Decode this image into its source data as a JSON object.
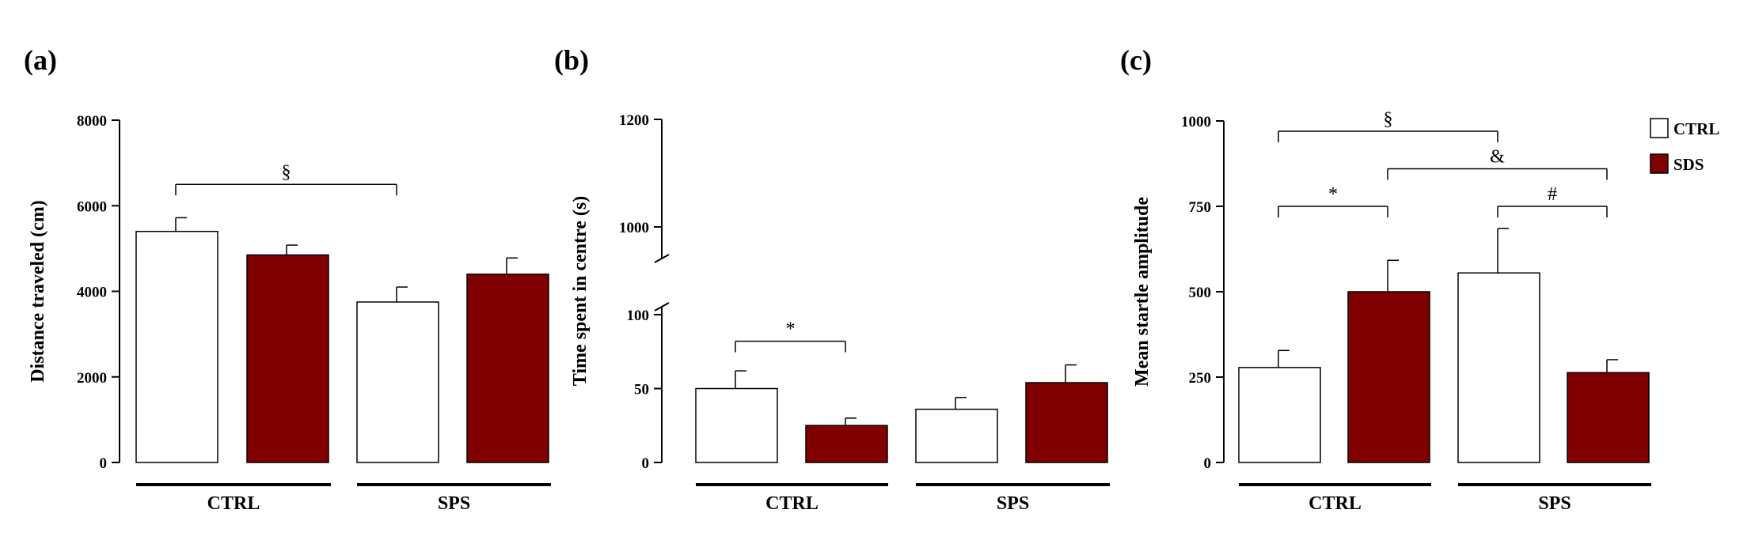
{
  "legend": [
    {
      "label": "CTRL",
      "color": "#ffffff"
    },
    {
      "label": "SDS",
      "color": "#800000"
    }
  ],
  "chart_data": [
    {
      "type": "bar",
      "panel": "(a)",
      "ylabel": "Distance traveled (cm)",
      "groups": [
        "CTRL",
        "SPS"
      ],
      "ylim": [
        0,
        8000
      ],
      "yticks": [
        0,
        2000,
        4000,
        6000,
        8000
      ],
      "series": [
        {
          "name": "CTRL",
          "color": "#ffffff",
          "values": [
            5400,
            3750
          ],
          "errors": [
            320,
            350
          ]
        },
        {
          "name": "SDS",
          "color": "#800000",
          "values": [
            4850,
            4400
          ],
          "errors": [
            230,
            380
          ]
        }
      ],
      "annotations": [
        {
          "from": [
            0,
            0
          ],
          "to": [
            1,
            0
          ],
          "level": 6500,
          "label": "§"
        }
      ]
    },
    {
      "type": "bar",
      "panel": "(b)",
      "ylabel": "Time spent in centre (s)",
      "groups": [
        "CTRL",
        "SPS"
      ],
      "ylim": [
        0,
        1200
      ],
      "axis_break": [
        100,
        1000
      ],
      "yticks": [
        0,
        50,
        100,
        1000,
        1200
      ],
      "series": [
        {
          "name": "CTRL",
          "color": "#ffffff",
          "values": [
            50,
            36
          ],
          "errors": [
            12,
            8
          ]
        },
        {
          "name": "SDS",
          "color": "#800000",
          "values": [
            25,
            54
          ],
          "errors": [
            5,
            12
          ]
        }
      ],
      "annotations": [
        {
          "from": [
            0,
            0
          ],
          "to": [
            0,
            1
          ],
          "level": 82,
          "label": "*"
        }
      ]
    },
    {
      "type": "bar",
      "panel": "(c)",
      "ylabel": "Mean startle amplitude",
      "groups": [
        "CTRL",
        "SPS"
      ],
      "ylim": [
        0,
        1000
      ],
      "yticks": [
        0,
        250,
        500,
        750,
        1000
      ],
      "series": [
        {
          "name": "CTRL",
          "color": "#ffffff",
          "values": [
            278,
            555
          ],
          "errors": [
            50,
            130
          ]
        },
        {
          "name": "SDS",
          "color": "#800000",
          "values": [
            500,
            263
          ],
          "errors": [
            92,
            38
          ]
        }
      ],
      "annotations": [
        {
          "from": [
            0,
            0
          ],
          "to": [
            1,
            0
          ],
          "level": 970,
          "label": "§"
        },
        {
          "from": [
            0,
            1
          ],
          "to": [
            1,
            1
          ],
          "level": 860,
          "label": "&"
        },
        {
          "from": [
            0,
            0
          ],
          "to": [
            0,
            1
          ],
          "level": 750,
          "label": "*"
        },
        {
          "from": [
            1,
            0
          ],
          "to": [
            1,
            1
          ],
          "level": 750,
          "label": "#"
        }
      ]
    }
  ]
}
